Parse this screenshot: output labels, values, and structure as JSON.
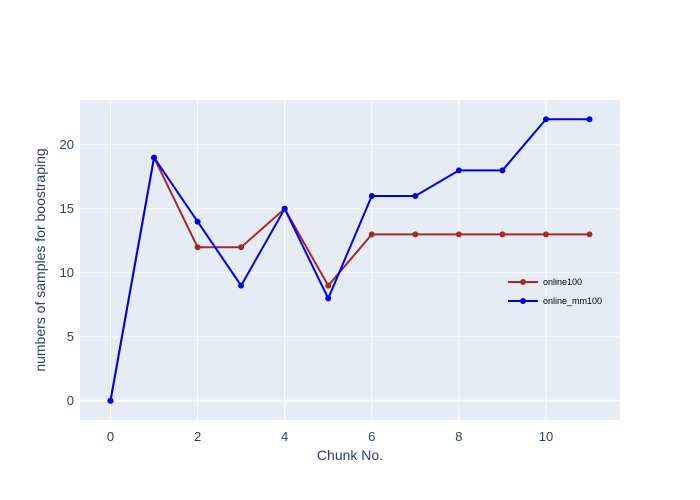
{
  "chart_data": {
    "type": "line",
    "xlabel": "Chunk No.",
    "ylabel": "numbers of samples for boostraping",
    "xlim": [
      -0.7,
      11.7
    ],
    "ylim": [
      -1.5,
      23.5
    ],
    "xticks": [
      0,
      2,
      4,
      6,
      8,
      10
    ],
    "yticks": [
      0,
      5,
      10,
      15,
      20
    ],
    "grid": true,
    "legend_position": "right",
    "x": [
      0,
      1,
      2,
      3,
      4,
      5,
      6,
      7,
      8,
      9,
      10,
      11
    ],
    "series": [
      {
        "name": "online100",
        "color": "#a52a2a",
        "values": [
          0,
          19,
          12,
          12,
          15,
          9,
          13,
          13,
          13,
          13,
          13,
          13
        ]
      },
      {
        "name": "online_mm100",
        "color": "#0000ee",
        "values": [
          0,
          19,
          14,
          9,
          15,
          8,
          16,
          16,
          18,
          18,
          22,
          22
        ]
      }
    ]
  }
}
